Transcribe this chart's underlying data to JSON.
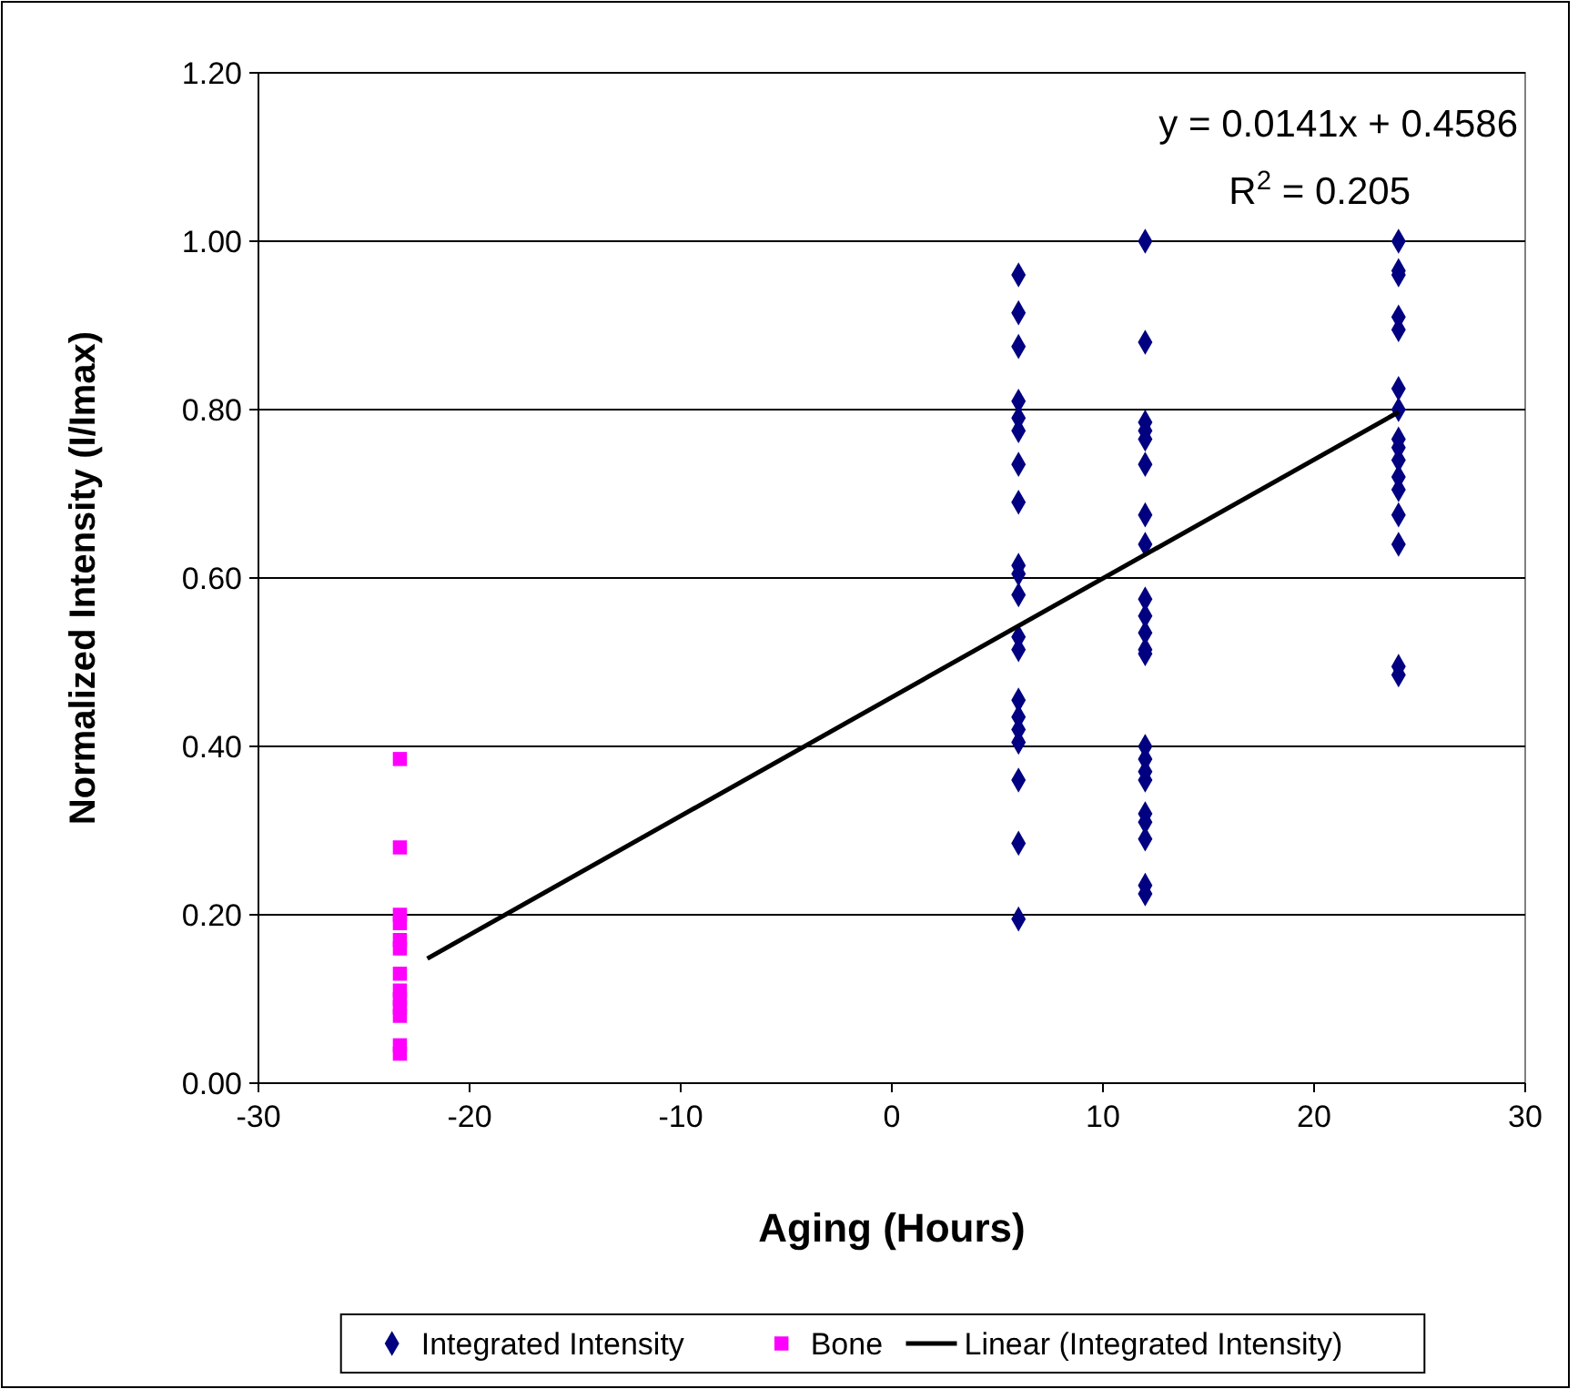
{
  "chart_data": {
    "type": "scatter",
    "xlabel": "Aging (Hours)",
    "ylabel": "Normalized Intensity (I/Imax)",
    "xlim": [
      -30,
      30
    ],
    "xticks": [
      -30,
      -20,
      -10,
      0,
      10,
      20,
      30
    ],
    "ylim": [
      0,
      1.2
    ],
    "yticks": [
      {
        "value": 0,
        "label": "0.00"
      },
      {
        "value": 0.2,
        "label": "0.20"
      },
      {
        "value": 0.4,
        "label": "0.40"
      },
      {
        "value": 0.6,
        "label": "0.60"
      },
      {
        "value": 0.8,
        "label": "0.80"
      },
      {
        "value": 1,
        "label": "1.00"
      },
      {
        "value": 1.2,
        "label": "1.20"
      }
    ],
    "grid": "y",
    "legend": "bottom",
    "annotations": [
      "y = 0.0141x + 0.4586",
      "R$^{2}$ = 0.205"
    ],
    "series": [
      {
        "name": "Integrated Intensity",
        "marker": "diamond",
        "color": "#000080",
        "x": [
          6,
          6,
          6,
          6,
          6,
          6,
          6,
          6,
          6,
          6,
          6,
          6,
          6,
          6,
          6,
          6,
          6,
          6,
          6,
          6,
          12,
          12,
          12,
          12,
          12,
          12,
          12,
          12,
          12,
          12,
          12,
          12,
          12,
          12,
          12,
          12,
          12,
          12,
          12,
          12,
          12,
          12,
          24,
          24,
          24,
          24,
          24,
          24,
          24,
          24,
          24,
          24,
          24,
          24,
          24,
          24,
          24,
          24
        ],
        "values": [
          0.96,
          0.915,
          0.875,
          0.81,
          0.79,
          0.775,
          0.735,
          0.69,
          0.615,
          0.605,
          0.58,
          0.53,
          0.515,
          0.455,
          0.435,
          0.42,
          0.405,
          0.36,
          0.285,
          0.195,
          1.0,
          0.88,
          0.785,
          0.775,
          0.765,
          0.735,
          0.675,
          0.64,
          0.575,
          0.555,
          0.535,
          0.515,
          0.51,
          0.4,
          0.385,
          0.37,
          0.36,
          0.32,
          0.31,
          0.29,
          0.235,
          0.225,
          1.0,
          0.965,
          0.96,
          0.91,
          0.895,
          0.825,
          0.8,
          0.765,
          0.755,
          0.74,
          0.72,
          0.705,
          0.675,
          0.64,
          0.495,
          0.485
        ]
      },
      {
        "name": "Bone",
        "marker": "square",
        "color": "#ff00ff",
        "x": [
          -23.3,
          -23.3,
          -23.3,
          -23.3,
          -23.3,
          -23.3,
          -23.3,
          -23.3,
          -23.3,
          -23.3,
          -23.3,
          -23.3,
          -23.3
        ],
        "values": [
          0.385,
          0.28,
          0.2,
          0.19,
          0.17,
          0.16,
          0.13,
          0.11,
          0.1,
          0.09,
          0.08,
          0.045,
          0.035
        ]
      },
      {
        "name": "Linear (Integrated Intensity)",
        "type": "line",
        "marker": "none",
        "color": "#000000",
        "x": [
          -22,
          24
        ],
        "values": [
          0.148,
          0.797
        ]
      }
    ]
  }
}
